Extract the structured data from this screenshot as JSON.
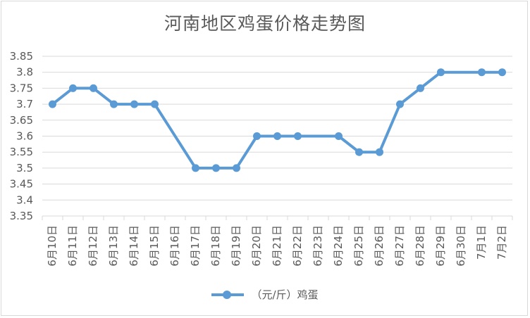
{
  "chart_data": {
    "type": "line",
    "title": "河南地区鸡蛋价格走势图",
    "xlabel": "",
    "ylabel": "",
    "ylim": [
      3.35,
      3.85
    ],
    "yticks": [
      "3.35",
      "3.4",
      "3.45",
      "3.5",
      "3.55",
      "3.6",
      "3.65",
      "3.7",
      "3.75",
      "3.8",
      "3.85"
    ],
    "grid": true,
    "legend_position": "bottom",
    "categories": [
      "6月10日",
      "6月11日",
      "6月12日",
      "6月13日",
      "6月14日",
      "6月15日",
      "6月16日",
      "6月17日",
      "6月18日",
      "6月19日",
      "6月20日",
      "6月21日",
      "6月22日",
      "6月23日",
      "6月24日",
      "6月25日",
      "6月26日",
      "6月27日",
      "6月28日",
      "6月29日",
      "6月30日",
      "7月1日",
      "7月2日"
    ],
    "series": [
      {
        "name": "（元/斤）鸡蛋",
        "color": "#5b9bd5",
        "values": [
          3.7,
          3.75,
          3.75,
          3.7,
          3.7,
          3.7,
          null,
          3.5,
          3.5,
          3.5,
          3.6,
          3.6,
          3.6,
          null,
          3.6,
          3.55,
          3.55,
          3.7,
          3.75,
          3.8,
          null,
          3.8,
          3.8
        ]
      }
    ]
  }
}
